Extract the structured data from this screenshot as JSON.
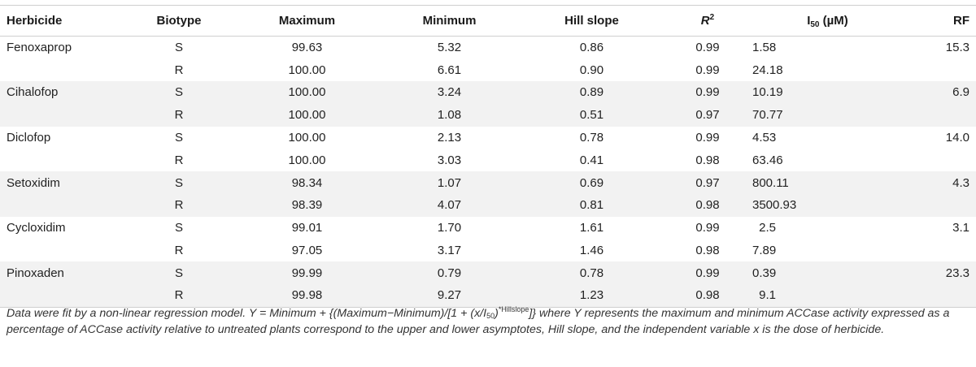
{
  "table": {
    "headers": {
      "herbicide": "Herbicide",
      "biotype": "Biotype",
      "maximum": "Maximum",
      "minimum": "Minimum",
      "hill_slope": "Hill slope",
      "r2_base": "R",
      "r2_sup": "2",
      "i50_base": "I",
      "i50_sub": "50",
      "i50_unit": " (µM)",
      "rf": "RF"
    },
    "rows": [
      {
        "herbicide": "Fenoxaprop",
        "biotype": "S",
        "maximum": "99.63",
        "minimum": "5.32",
        "hill_slope": "0.86",
        "r2": "0.99",
        "i50": "1.58",
        "rf": "15.3"
      },
      {
        "herbicide": "",
        "biotype": "R",
        "maximum": "100.00",
        "minimum": "6.61",
        "hill_slope": "0.90",
        "r2": "0.99",
        "i50": "24.18",
        "rf": ""
      },
      {
        "herbicide": "Cihalofop",
        "biotype": "S",
        "maximum": "100.00",
        "minimum": "3.24",
        "hill_slope": "0.89",
        "r2": "0.99",
        "i50": "10.19",
        "rf": "6.9"
      },
      {
        "herbicide": "",
        "biotype": "R",
        "maximum": "100.00",
        "minimum": "1.08",
        "hill_slope": "0.51",
        "r2": "0.97",
        "i50": "70.77",
        "rf": ""
      },
      {
        "herbicide": "Diclofop",
        "biotype": "S",
        "maximum": "100.00",
        "minimum": "2.13",
        "hill_slope": "0.78",
        "r2": "0.99",
        "i50": "4.53",
        "rf": "14.0"
      },
      {
        "herbicide": "",
        "biotype": "R",
        "maximum": "100.00",
        "minimum": "3.03",
        "hill_slope": "0.41",
        "r2": "0.98",
        "i50": "63.46",
        "rf": ""
      },
      {
        "herbicide": "Setoxidim",
        "biotype": "S",
        "maximum": "98.34",
        "minimum": "1.07",
        "hill_slope": "0.69",
        "r2": "0.97",
        "i50": "800.11",
        "rf": "4.3"
      },
      {
        "herbicide": "",
        "biotype": "R",
        "maximum": "98.39",
        "minimum": "4.07",
        "hill_slope": "0.81",
        "r2": "0.98",
        "i50": "3500.93",
        "rf": ""
      },
      {
        "herbicide": "Cycloxidim",
        "biotype": "S",
        "maximum": "99.01",
        "minimum": "1.70",
        "hill_slope": "1.61",
        "r2": "0.99",
        "i50": "2.5",
        "rf": "3.1"
      },
      {
        "herbicide": "",
        "biotype": "R",
        "maximum": "97.05",
        "minimum": "3.17",
        "hill_slope": "1.46",
        "r2": "0.98",
        "i50": "7.89",
        "rf": ""
      },
      {
        "herbicide": "Pinoxaden",
        "biotype": "S",
        "maximum": "99.99",
        "minimum": "0.79",
        "hill_slope": "0.78",
        "r2": "0.99",
        "i50": "0.39",
        "rf": "23.3"
      },
      {
        "herbicide": "",
        "biotype": "R",
        "maximum": "99.98",
        "minimum": "9.27",
        "hill_slope": "1.23",
        "r2": "0.98",
        "i50": "9.1",
        "rf": ""
      }
    ]
  },
  "footnote": {
    "part1": "Data were fit by a non-linear regression model. Y = Minimum + {(Maximum−Minimum)/[1 + (x/I",
    "sub1": "50",
    "part2": ")",
    "sup1": "*Hillslope",
    "part3": "]} where Y represents the maximum and minimum ACCase activity expressed as a percentage of ACCase activity relative to untreated plants correspond to the upper and lower asymptotes, Hill slope, and the independent variable x is the dose of herbicide."
  },
  "colors": {
    "row_shade": "#f2f2f2",
    "rule": "#cfcfcf",
    "text": "#222222"
  }
}
